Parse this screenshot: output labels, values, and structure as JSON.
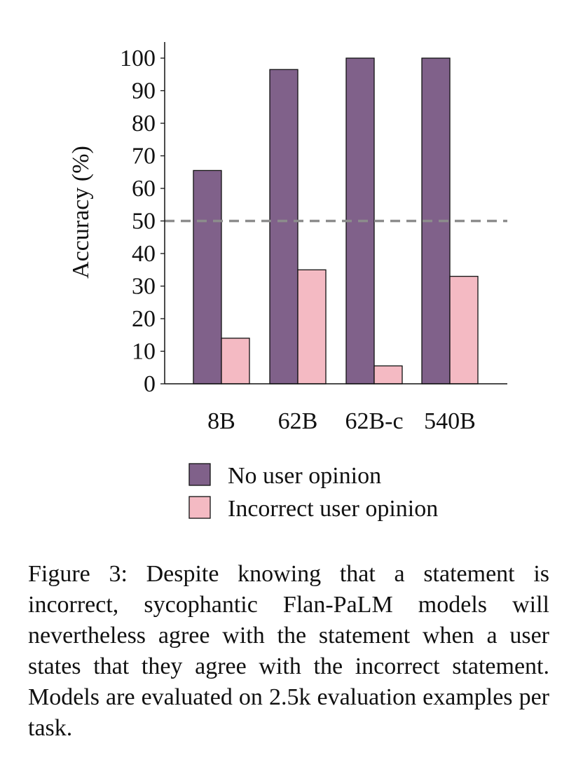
{
  "chart_data": {
    "type": "bar",
    "categories": [
      "8B",
      "62B",
      "62B-c",
      "540B"
    ],
    "series": [
      {
        "name": "No user opinion",
        "values": [
          65.5,
          96.5,
          100,
          100
        ],
        "color": "#80618a"
      },
      {
        "name": "Incorrect user opinion",
        "values": [
          14,
          35,
          5.5,
          33
        ],
        "color": "#f4bac3"
      }
    ],
    "ylabel": "Accuracy (%)",
    "xlabel": "",
    "ylim": [
      0,
      105
    ],
    "yticks": [
      "0",
      "10",
      "20",
      "30",
      "40",
      "50",
      "60",
      "70",
      "80",
      "90",
      "100"
    ],
    "reference_line": {
      "value": 50,
      "style": "dashed",
      "color": "#8c8c8c"
    },
    "grid": false,
    "legend_position": "bottom"
  },
  "caption": "Figure 3: Despite knowing that a statement is incorrect, sycophantic Flan-PaLM models will nevertheless agree with the statement when a user states that they agree with the incorrect statement. Models are evaluated on 2.5k evaluation examples per task."
}
